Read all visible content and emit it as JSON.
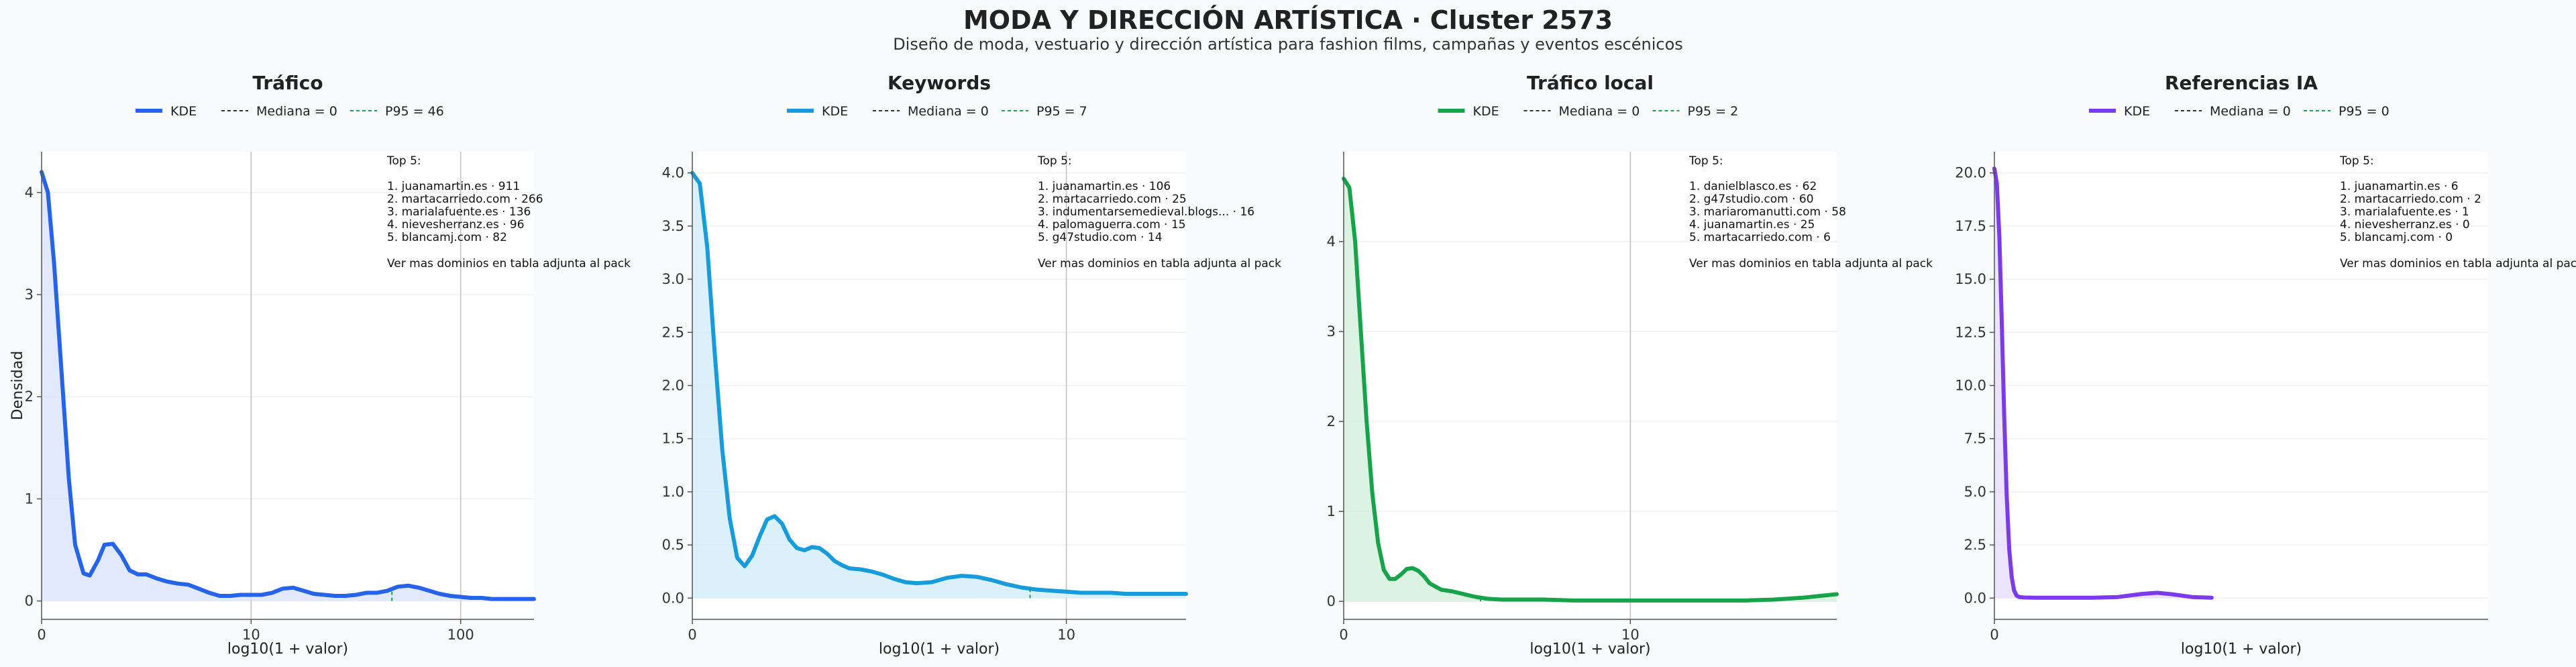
{
  "title": "MODA Y DIRECCIÓN ARTÍSTICA · Cluster 2573",
  "subtitle": "Diseño de moda, vestuario y dirección artística para fashion films, campañas y eventos escénicos",
  "chart_data": [
    {
      "type": "area",
      "title": "Tráfico",
      "xlabel": "log10(1 + valor)",
      "ylabel": "Densidad",
      "x_scale": "log10(1+x)",
      "xlim": [
        0,
        2.35
      ],
      "ylim": [
        -0.18,
        4.4
      ],
      "x_ticks": [
        {
          "v": 0,
          "label": "0"
        },
        {
          "v": 1,
          "label": "10"
        },
        {
          "v": 2,
          "label": "100"
        }
      ],
      "y_ticks": [
        {
          "v": 0,
          "label": "0"
        },
        {
          "v": 1,
          "label": "1"
        },
        {
          "v": 2,
          "label": "2"
        },
        {
          "v": 3,
          "label": "3"
        },
        {
          "v": 4,
          "label": "4"
        }
      ],
      "vlines": [
        1,
        2
      ],
      "color": "#2563eb",
      "fill": "#dbe4fb",
      "kde_x": [
        0,
        0.03,
        0.06,
        0.1,
        0.13,
        0.16,
        0.2,
        0.23,
        0.27,
        0.3,
        0.34,
        0.38,
        0.42,
        0.46,
        0.5,
        0.55,
        0.6,
        0.65,
        0.7,
        0.75,
        0.8,
        0.85,
        0.9,
        0.95,
        1.0,
        1.05,
        1.1,
        1.15,
        1.2,
        1.25,
        1.3,
        1.35,
        1.4,
        1.45,
        1.5,
        1.55,
        1.6,
        1.65,
        1.7,
        1.75,
        1.8,
        1.85,
        1.9,
        1.95,
        2.0,
        2.05,
        2.1,
        2.15,
        2.2,
        2.25,
        2.3,
        2.35
      ],
      "kde_y": [
        4.2,
        4.0,
        3.3,
        2.1,
        1.2,
        0.55,
        0.27,
        0.25,
        0.4,
        0.55,
        0.56,
        0.45,
        0.3,
        0.26,
        0.26,
        0.22,
        0.19,
        0.17,
        0.16,
        0.12,
        0.08,
        0.05,
        0.05,
        0.06,
        0.06,
        0.06,
        0.08,
        0.12,
        0.13,
        0.1,
        0.07,
        0.06,
        0.05,
        0.05,
        0.06,
        0.08,
        0.08,
        0.1,
        0.14,
        0.15,
        0.13,
        0.1,
        0.07,
        0.05,
        0.04,
        0.03,
        0.03,
        0.02,
        0.02,
        0.02,
        0.02,
        0.02
      ],
      "median_label": "Mediana = 0",
      "median": 0,
      "p95_label": "P95 = 46",
      "p95": 46,
      "legend": [
        "KDE",
        "Mediana = 0",
        "P95 = 46"
      ],
      "top_title": "Top 5:",
      "top_items": [
        "1. juanamartin.es · 911",
        "2. martacarriedo.com · 266",
        "3. marialafuente.es · 136",
        "4. nievesherranz.es · 96",
        "5. blancamj.com · 82"
      ],
      "top_note": "Ver mas dominios en tabla adjunta al pack"
    },
    {
      "type": "area",
      "title": "Keywords",
      "xlabel": "log10(1 + valor)",
      "ylabel": "",
      "x_scale": "log10(1+x)",
      "xlim": [
        0,
        1.32
      ],
      "ylim": [
        -0.2,
        4.2
      ],
      "x_ticks": [
        {
          "v": 0,
          "label": "0"
        },
        {
          "v": 1,
          "label": "10"
        }
      ],
      "y_ticks": [
        {
          "v": 0,
          "label": "0.0"
        },
        {
          "v": 0.5,
          "label": "0.5"
        },
        {
          "v": 1,
          "label": "1.0"
        },
        {
          "v": 1.5,
          "label": "1.5"
        },
        {
          "v": 2,
          "label": "2.0"
        },
        {
          "v": 2.5,
          "label": "2.5"
        },
        {
          "v": 3,
          "label": "3.0"
        },
        {
          "v": 3.5,
          "label": "3.5"
        },
        {
          "v": 4,
          "label": "4.0"
        }
      ],
      "vlines": [
        1
      ],
      "color": "#169bdb",
      "fill": "#d3ecf9",
      "kde_x": [
        0,
        0.02,
        0.04,
        0.06,
        0.08,
        0.1,
        0.12,
        0.14,
        0.16,
        0.18,
        0.2,
        0.22,
        0.24,
        0.26,
        0.28,
        0.3,
        0.32,
        0.34,
        0.36,
        0.38,
        0.4,
        0.42,
        0.45,
        0.48,
        0.51,
        0.54,
        0.57,
        0.6,
        0.64,
        0.68,
        0.72,
        0.76,
        0.8,
        0.84,
        0.88,
        0.92,
        0.96,
        1.0,
        1.04,
        1.08,
        1.12,
        1.16,
        1.2,
        1.24,
        1.28,
        1.32
      ],
      "kde_y": [
        4.0,
        3.9,
        3.3,
        2.3,
        1.4,
        0.75,
        0.38,
        0.3,
        0.4,
        0.58,
        0.74,
        0.77,
        0.7,
        0.55,
        0.47,
        0.45,
        0.48,
        0.47,
        0.42,
        0.35,
        0.31,
        0.28,
        0.27,
        0.25,
        0.22,
        0.18,
        0.15,
        0.14,
        0.15,
        0.19,
        0.21,
        0.2,
        0.17,
        0.13,
        0.1,
        0.08,
        0.07,
        0.06,
        0.05,
        0.05,
        0.05,
        0.04,
        0.04,
        0.04,
        0.04,
        0.04
      ],
      "median_label": "Mediana = 0",
      "median": 0,
      "p95_label": "P95 = 7",
      "p95": 7,
      "legend": [
        "KDE",
        "Mediana = 0",
        "P95 = 7"
      ],
      "top_title": "Top 5:",
      "top_items": [
        "1. juanamartin.es · 106",
        "2. martacarriedo.com · 25",
        "3. indumentarsemedieval.blogs... · 16",
        "4. palomaguerra.com · 15",
        "5. g47studio.com · 14"
      ],
      "top_note": "Ver mas dominios en tabla adjunta al pack"
    },
    {
      "type": "area",
      "title": "Tráfico local",
      "xlabel": "log10(1 + valor)",
      "ylabel": "",
      "x_scale": "log10(1+x)",
      "xlim": [
        0,
        1.72
      ],
      "ylim": [
        -0.2,
        5.0
      ],
      "x_ticks": [
        {
          "v": 0,
          "label": "0"
        },
        {
          "v": 1,
          "label": "10"
        }
      ],
      "y_ticks": [
        {
          "v": 0,
          "label": "0"
        },
        {
          "v": 1,
          "label": "1"
        },
        {
          "v": 2,
          "label": "2"
        },
        {
          "v": 3,
          "label": "3"
        },
        {
          "v": 4,
          "label": "4"
        }
      ],
      "vlines": [
        1
      ],
      "color": "#16a34a",
      "fill": "#d3f0dc",
      "kde_x": [
        0,
        0.02,
        0.04,
        0.06,
        0.08,
        0.1,
        0.12,
        0.14,
        0.16,
        0.18,
        0.2,
        0.22,
        0.24,
        0.26,
        0.28,
        0.3,
        0.34,
        0.38,
        0.42,
        0.46,
        0.5,
        0.55,
        0.6,
        0.7,
        0.8,
        0.9,
        1.0,
        1.1,
        1.2,
        1.3,
        1.4,
        1.5,
        1.6,
        1.66,
        1.72
      ],
      "kde_y": [
        4.7,
        4.6,
        4.0,
        3.0,
        2.0,
        1.2,
        0.65,
        0.35,
        0.25,
        0.25,
        0.3,
        0.36,
        0.37,
        0.34,
        0.28,
        0.2,
        0.13,
        0.11,
        0.08,
        0.05,
        0.03,
        0.02,
        0.02,
        0.02,
        0.01,
        0.01,
        0.01,
        0.01,
        0.01,
        0.01,
        0.01,
        0.02,
        0.04,
        0.06,
        0.08
      ],
      "median_label": "Mediana = 0",
      "median": 0,
      "p95_label": "P95 = 2",
      "p95": 2,
      "legend": [
        "KDE",
        "Mediana = 0",
        "P95 = 2"
      ],
      "top_title": "Top 5:",
      "top_items": [
        "1. danielblasco.es · 62",
        "2. g47studio.com · 60",
        "3. mariaromanutti.com · 58",
        "4. juanamartin.es · 25",
        "5. martacarriedo.com · 6"
      ],
      "top_note": "Ver mas dominios en tabla adjunta al pack"
    },
    {
      "type": "area",
      "title": "Referencias IA",
      "xlabel": "log10(1 + valor)",
      "ylabel": "",
      "x_scale": "log10(1+x)",
      "xlim": [
        0,
        1.0
      ],
      "ylim": [
        -1.0,
        21.0
      ],
      "x_ticks": [
        {
          "v": 0,
          "label": "0"
        }
      ],
      "y_ticks": [
        {
          "v": 0,
          "label": "0.0"
        },
        {
          "v": 2.5,
          "label": "2.5"
        },
        {
          "v": 5,
          "label": "5.0"
        },
        {
          "v": 7.5,
          "label": "7.5"
        },
        {
          "v": 10,
          "label": "10.0"
        },
        {
          "v": 12.5,
          "label": "12.5"
        },
        {
          "v": 15,
          "label": "15.0"
        },
        {
          "v": 17.5,
          "label": "17.5"
        },
        {
          "v": 20,
          "label": "20.0"
        }
      ],
      "vlines": [],
      "color": "#7c3aed",
      "fill": "#e7dcfb",
      "kde_x": [
        0,
        0.005,
        0.01,
        0.015,
        0.02,
        0.025,
        0.03,
        0.035,
        0.04,
        0.045,
        0.05,
        0.06,
        0.08,
        0.1,
        0.15,
        0.2,
        0.25,
        0.3,
        0.33,
        0.36,
        0.4,
        0.44
      ],
      "kde_y": [
        20.2,
        19.5,
        17.0,
        13.0,
        8.5,
        4.8,
        2.3,
        1.0,
        0.35,
        0.12,
        0.05,
        0.03,
        0.02,
        0.02,
        0.02,
        0.02,
        0.05,
        0.2,
        0.25,
        0.18,
        0.05,
        0.02
      ],
      "median_label": "Mediana = 0",
      "median": 0,
      "p95_label": "P95 = 0",
      "p95": 0,
      "legend": [
        "KDE",
        "Mediana = 0",
        "P95 = 0"
      ],
      "top_title": "Top 5:",
      "top_items": [
        "1. juanamartin.es · 6",
        "2. martacarriedo.com · 2",
        "3. marialafuente.es · 1",
        "4. nievesherranz.es · 0",
        "5. blancamj.com · 0"
      ],
      "top_note": "Ver mas dominios en tabla adjunta al pack"
    }
  ]
}
